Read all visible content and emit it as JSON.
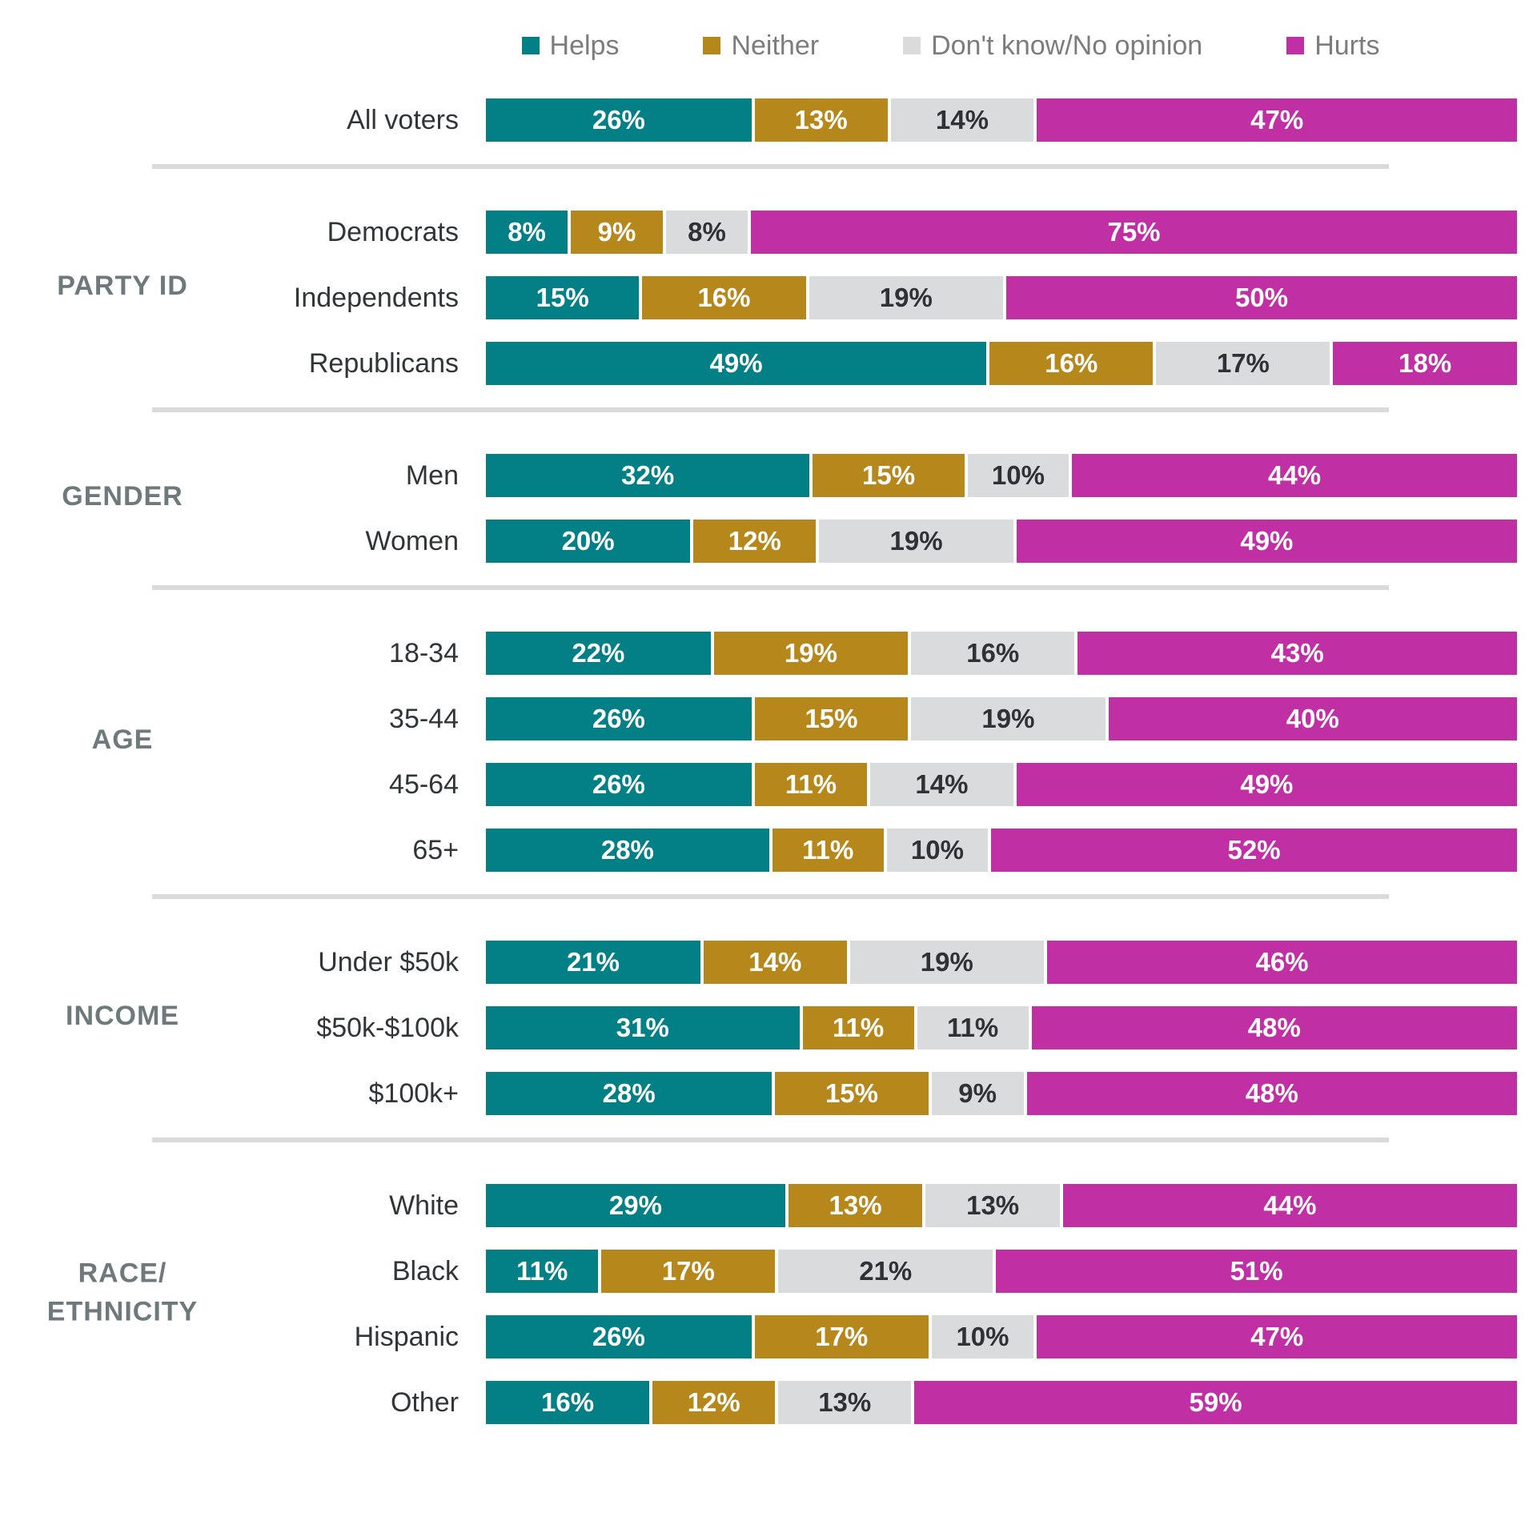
{
  "legend": [
    {
      "key": "helps",
      "label": "Helps",
      "color": "#038086",
      "text": "light"
    },
    {
      "key": "neither",
      "label": "Neither",
      "color": "#b6871b",
      "text": "light"
    },
    {
      "key": "dont-know",
      "label": "Don't know/No opinion",
      "color": "#d9dbdc",
      "text": "dark"
    },
    {
      "key": "hurts",
      "label": "Hurts",
      "color": "#c12fa4",
      "text": "light"
    }
  ],
  "chart_data": {
    "type": "bar",
    "subtype": "stacked-horizontal-percent",
    "unit": "%",
    "xlim": [
      0,
      100
    ],
    "grid": false,
    "legend_position": "top",
    "series_names": [
      "Helps",
      "Neither",
      "Don't know/No opinion",
      "Hurts"
    ],
    "groups": [
      {
        "label": "",
        "rows": [
          {
            "label": "All voters",
            "values": [
              26,
              13,
              14,
              47
            ]
          }
        ]
      },
      {
        "label": "PARTY ID",
        "rows": [
          {
            "label": "Democrats",
            "values": [
              8,
              9,
              8,
              75
            ]
          },
          {
            "label": "Independents",
            "values": [
              15,
              16,
              19,
              50
            ]
          },
          {
            "label": "Republicans",
            "values": [
              49,
              16,
              17,
              18
            ]
          }
        ]
      },
      {
        "label": "GENDER",
        "rows": [
          {
            "label": "Men",
            "values": [
              32,
              15,
              10,
              44
            ]
          },
          {
            "label": "Women",
            "values": [
              20,
              12,
              19,
              49
            ]
          }
        ]
      },
      {
        "label": "AGE",
        "rows": [
          {
            "label": "18-34",
            "values": [
              22,
              19,
              16,
              43
            ]
          },
          {
            "label": "35-44",
            "values": [
              26,
              15,
              19,
              40
            ]
          },
          {
            "label": "45-64",
            "values": [
              26,
              11,
              14,
              49
            ]
          },
          {
            "label": "65+",
            "values": [
              28,
              11,
              10,
              52
            ]
          }
        ]
      },
      {
        "label": "INCOME",
        "rows": [
          {
            "label": "Under $50k",
            "values": [
              21,
              14,
              19,
              46
            ]
          },
          {
            "label": "$50k-$100k",
            "values": [
              31,
              11,
              11,
              48
            ]
          },
          {
            "label": "$100k+",
            "values": [
              28,
              15,
              9,
              48
            ]
          }
        ]
      },
      {
        "label": "RACE/\nETHNICITY",
        "rows": [
          {
            "label": "White",
            "values": [
              29,
              13,
              13,
              44
            ]
          },
          {
            "label": "Black",
            "values": [
              11,
              17,
              21,
              51
            ]
          },
          {
            "label": "Hispanic",
            "values": [
              26,
              17,
              10,
              47
            ]
          },
          {
            "label": "Other",
            "values": [
              16,
              12,
              13,
              59
            ]
          }
        ]
      }
    ]
  }
}
